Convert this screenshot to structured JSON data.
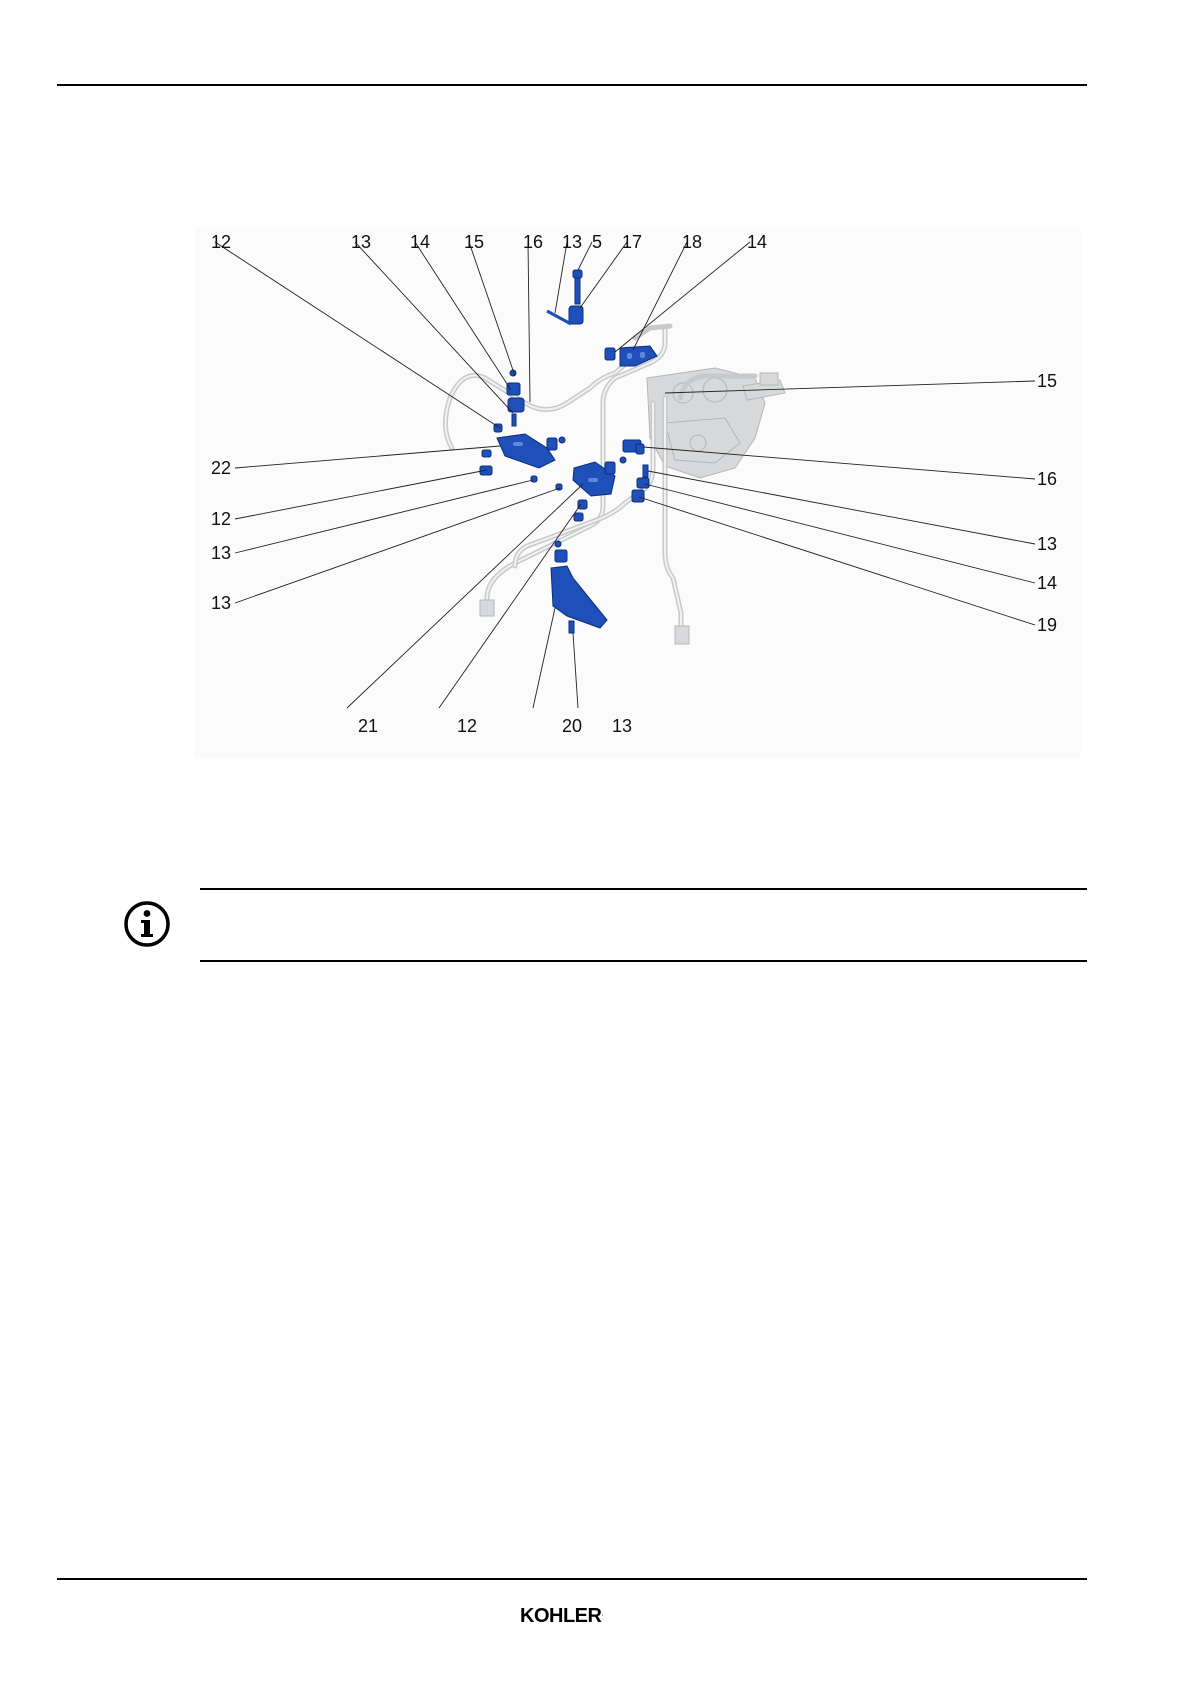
{
  "figure": {
    "callouts": {
      "top_12": "12",
      "top_13a": "13",
      "top_14a": "14",
      "top_15": "15",
      "top_16": "16",
      "top_13b": "13",
      "top_5": "5",
      "top_17": "17",
      "top_18": "18",
      "top_14b": "14",
      "right_15": "15",
      "right_16": "16",
      "right_13": "13",
      "right_14": "14",
      "right_19": "19",
      "left_22": "22",
      "left_12": "12",
      "left_13a": "13",
      "left_13b": "13",
      "bottom_21": "21",
      "bottom_12": "12",
      "bottom_20": "20",
      "bottom_13": "13"
    },
    "colors": {
      "part": "#1f4fb8",
      "tube": "#c7c9cb"
    }
  },
  "info_note": {
    "icon": "info-icon",
    "text": ""
  },
  "footer": {
    "brand": "KOHLER"
  }
}
